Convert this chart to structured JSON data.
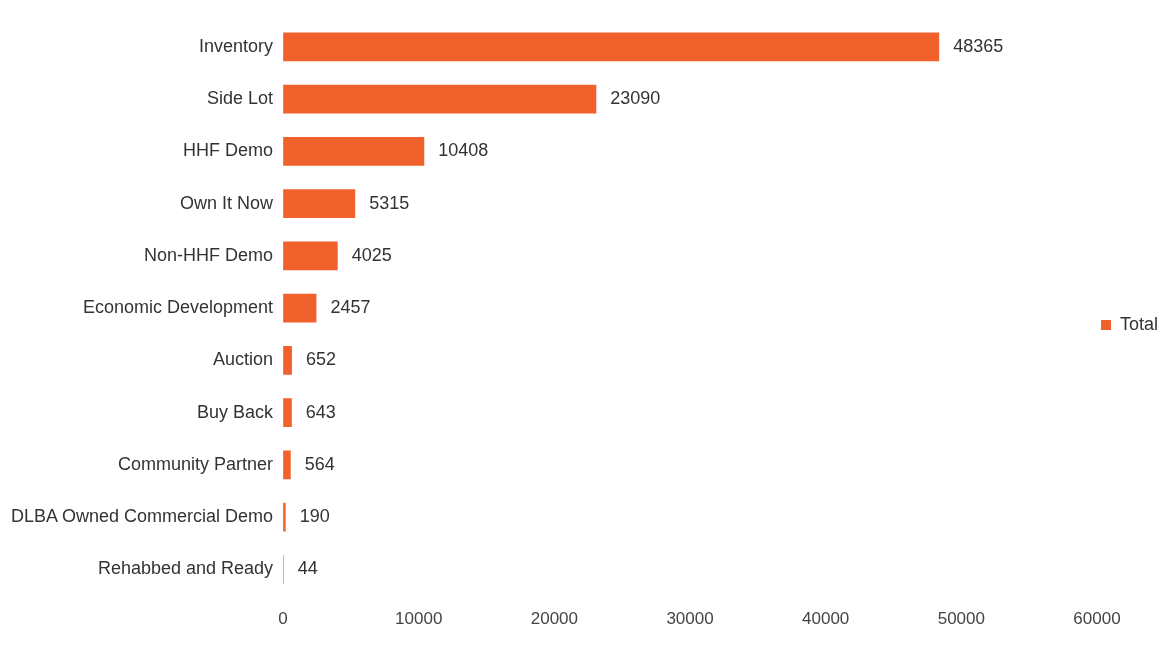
{
  "chart_data": {
    "type": "bar",
    "orientation": "horizontal",
    "categories": [
      "Inventory",
      "Side Lot",
      "HHF Demo",
      "Own It Now",
      "Non-HHF Demo",
      "Economic Development",
      "Auction",
      "Buy Back",
      "Community Partner",
      "DLBA Owned Commercial Demo",
      "Rehabbed and Ready"
    ],
    "series": [
      {
        "name": "Total",
        "color": "#f0612c",
        "values": [
          48365,
          23090,
          10408,
          5315,
          4025,
          2457,
          652,
          643,
          564,
          190,
          44
        ]
      }
    ],
    "xlim": [
      0,
      60000
    ],
    "xticks": [
      0,
      10000,
      20000,
      30000,
      40000,
      50000,
      60000
    ],
    "grid": false,
    "legend": "right",
    "data_labels": true
  }
}
